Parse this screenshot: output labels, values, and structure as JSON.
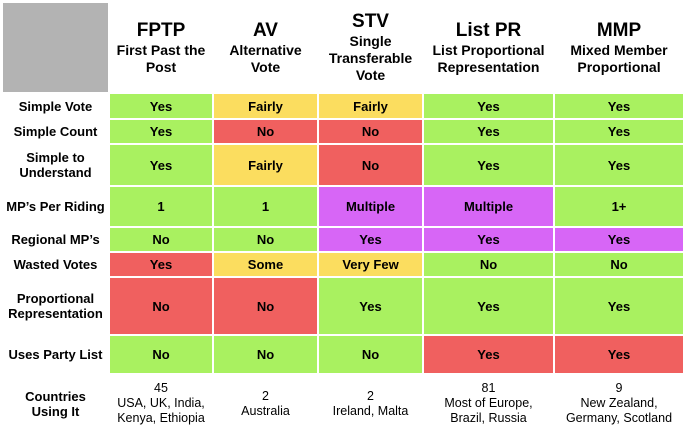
{
  "header": {
    "columns": [
      {
        "abbr": "FPTP",
        "name": "First Past the Post"
      },
      {
        "abbr": "AV",
        "name": "Alternative Vote"
      },
      {
        "abbr": "STV",
        "name": "Single Transferable Vote"
      },
      {
        "abbr": "List PR",
        "name": "List Proportional Representation"
      },
      {
        "abbr": "MMP",
        "name": "Mixed Member Proportional"
      }
    ]
  },
  "table": {
    "rows": [
      {
        "label": "Simple Vote",
        "cells": [
          {
            "text": "Yes",
            "color": "#a9f160"
          },
          {
            "text": "Fairly",
            "color": "#fbdd5f"
          },
          {
            "text": "Fairly",
            "color": "#fbdd5f"
          },
          {
            "text": "Yes",
            "color": "#a9f160"
          },
          {
            "text": "Yes",
            "color": "#a9f160"
          }
        ]
      },
      {
        "label": "Simple Count",
        "cells": [
          {
            "text": "Yes",
            "color": "#a9f160"
          },
          {
            "text": "No",
            "color": "#f0605f"
          },
          {
            "text": "No",
            "color": "#f0605f"
          },
          {
            "text": "Yes",
            "color": "#a9f160"
          },
          {
            "text": "Yes",
            "color": "#a9f160"
          }
        ]
      },
      {
        "label": "Simple to Understand",
        "cells": [
          {
            "text": "Yes",
            "color": "#a9f160"
          },
          {
            "text": "Fairly",
            "color": "#fbdd5f"
          },
          {
            "text": "No",
            "color": "#f0605f"
          },
          {
            "text": "Yes",
            "color": "#a9f160"
          },
          {
            "text": "Yes",
            "color": "#a9f160"
          }
        ]
      },
      {
        "label": "MP’s Per Riding",
        "cells": [
          {
            "text": "1",
            "color": "#a9f160"
          },
          {
            "text": "1",
            "color": "#a9f160"
          },
          {
            "text": "Multiple",
            "color": "#d766f6"
          },
          {
            "text": "Multiple",
            "color": "#d766f6"
          },
          {
            "text": "1+",
            "color": "#a9f160"
          }
        ]
      },
      {
        "label": "Regional MP’s",
        "cells": [
          {
            "text": "No",
            "color": "#a9f160"
          },
          {
            "text": "No",
            "color": "#a9f160"
          },
          {
            "text": "Yes",
            "color": "#d766f6"
          },
          {
            "text": "Yes",
            "color": "#d766f6"
          },
          {
            "text": "Yes",
            "color": "#d766f6"
          }
        ]
      },
      {
        "label": "Wasted Votes",
        "cells": [
          {
            "text": "Yes",
            "color": "#f0605f"
          },
          {
            "text": "Some",
            "color": "#fbdd5f"
          },
          {
            "text": "Very Few",
            "color": "#fbdd5f"
          },
          {
            "text": "No",
            "color": "#a9f160"
          },
          {
            "text": "No",
            "color": "#a9f160"
          }
        ]
      },
      {
        "label": "Proportional Representation",
        "cells": [
          {
            "text": "No",
            "color": "#f0605f"
          },
          {
            "text": "No",
            "color": "#f0605f"
          },
          {
            "text": "Yes",
            "color": "#a9f160"
          },
          {
            "text": "Yes",
            "color": "#a9f160"
          },
          {
            "text": "Yes",
            "color": "#a9f160"
          }
        ]
      },
      {
        "label": "Uses Party List",
        "cells": [
          {
            "text": "No",
            "color": "#a9f160"
          },
          {
            "text": "No",
            "color": "#a9f160"
          },
          {
            "text": "No",
            "color": "#a9f160"
          },
          {
            "text": "Yes",
            "color": "#f0605f"
          },
          {
            "text": "Yes",
            "color": "#f0605f"
          }
        ]
      }
    ],
    "countries": {
      "label": "Countries Using It",
      "cells": [
        {
          "count": 45,
          "text": "USA, UK, India, Kenya, Ethiopia"
        },
        {
          "count": 2,
          "text": "Australia"
        },
        {
          "count": 2,
          "text": "Ireland, Malta"
        },
        {
          "count": 81,
          "text": "Most of Europe, Brazil, Russia"
        },
        {
          "count": 9,
          "text": "New Zealand, Germany, Scotland"
        }
      ]
    }
  }
}
